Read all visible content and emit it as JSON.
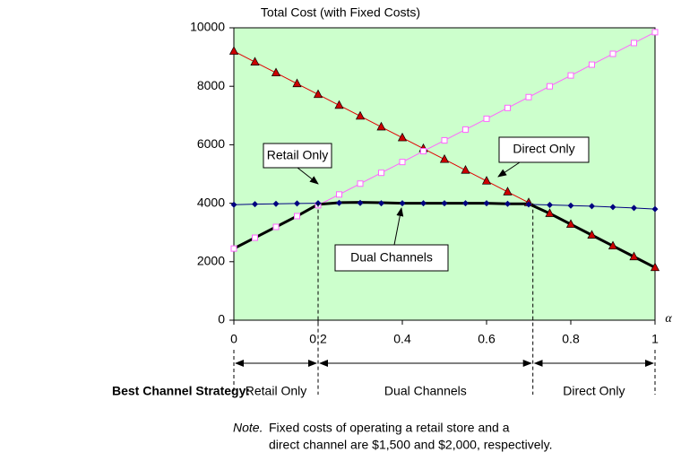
{
  "chart_data": {
    "type": "line",
    "title": "Total Cost (with Fixed Costs)",
    "x_label": "α",
    "x": [
      0,
      0.05,
      0.1,
      0.15,
      0.2,
      0.25,
      0.3,
      0.35,
      0.4,
      0.45,
      0.5,
      0.55,
      0.6,
      0.65,
      0.7,
      0.75,
      0.8,
      0.85,
      0.9,
      0.95,
      1
    ],
    "series": [
      {
        "color": "#e00000",
        "marker": "triangle",
        "values": [
          9200,
          8830,
          8460,
          8090,
          7720,
          7350,
          6980,
          6610,
          6240,
          5870,
          5500,
          5130,
          4760,
          4390,
          4020,
          3650,
          3280,
          2910,
          2540,
          2170,
          1800
        ]
      },
      {
        "color": "#ff66ff",
        "marker": "square",
        "values": [
          2450,
          2820,
          3190,
          3560,
          3930,
          4300,
          4670,
          5040,
          5410,
          5780,
          6150,
          6520,
          6890,
          7260,
          7630,
          8000,
          8370,
          8740,
          9110,
          9480,
          9850
        ]
      },
      {
        "color": "#000080",
        "marker": "diamond",
        "values": [
          3950,
          3970,
          3980,
          3990,
          4000,
          4010,
          4010,
          4000,
          4000,
          4000,
          4000,
          4000,
          4000,
          3980,
          3960,
          3940,
          3920,
          3900,
          3870,
          3840,
          3800
        ]
      },
      {
        "color": "#000000",
        "marker": "none",
        "width": 3,
        "values": [
          2450,
          2820,
          3190,
          3560,
          3960,
          4020,
          4030,
          4020,
          4000,
          4000,
          4000,
          4000,
          4000,
          3980,
          3980,
          3650,
          3280,
          2910,
          2540,
          2170,
          1800
        ]
      }
    ],
    "xlim": [
      0,
      1
    ],
    "xticks": [
      0,
      0.2,
      0.4,
      0.6,
      0.8,
      1
    ],
    "ylim": [
      0,
      10000
    ],
    "yticks": [
      0,
      2000,
      4000,
      6000,
      8000,
      10000
    ],
    "background": "#ccffcc",
    "annotations": [
      "Retail Only",
      "Direct Only",
      "Dual Channels"
    ],
    "strategy": {
      "label": "Best Channel Strategy:",
      "boundaries": [
        0,
        0.2,
        0.71,
        1
      ],
      "regions": [
        "Retail Only",
        "Dual Channels",
        "Direct Only"
      ]
    },
    "note": {
      "lead": "Note.",
      "lines": [
        "Fixed costs of operating a retail store and a",
        "direct channel are $1,500 and $2,000, respectively."
      ]
    }
  }
}
